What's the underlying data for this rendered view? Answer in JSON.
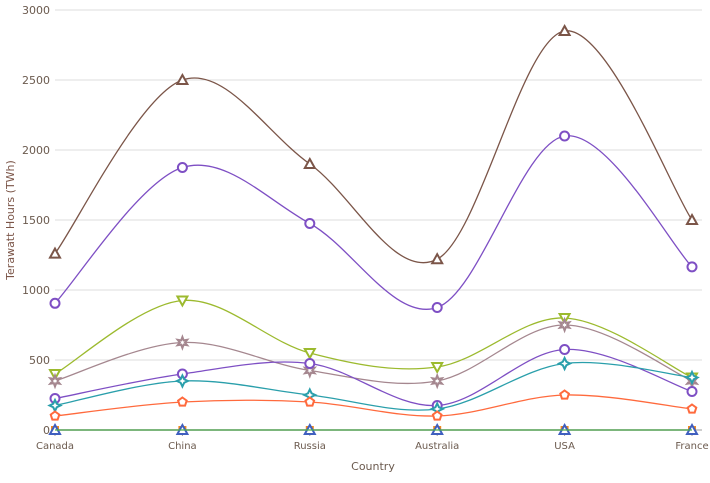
{
  "chart_data": {
    "type": "line",
    "xlabel": "Country",
    "ylabel": "Terawatt Hours (TWh)",
    "categories": [
      "Canada",
      "China",
      "Russia",
      "Australia",
      "USA",
      "France"
    ],
    "ylim": [
      0,
      3000
    ],
    "yticks": [
      0,
      500,
      1000,
      1500,
      2000,
      2500,
      3000
    ],
    "grid": true,
    "curve": "spline",
    "series": [
      {
        "color": "#7b5548",
        "marker": "triangle",
        "values": [
          1260,
          2500,
          1900,
          1220,
          2850,
          1500
        ]
      },
      {
        "color": "#7e4fc4",
        "marker": "circle",
        "values": [
          905,
          1875,
          1475,
          875,
          2100,
          1165
        ]
      },
      {
        "color": "#9cba2e",
        "marker": "triangle-down",
        "values": [
          400,
          925,
          550,
          450,
          800,
          375
        ]
      },
      {
        "color": "#a5878f",
        "marker": "star",
        "values": [
          350,
          625,
          425,
          350,
          750,
          350
        ]
      },
      {
        "color": "#7e4fc4",
        "marker": "circle",
        "values": [
          225,
          400,
          475,
          175,
          575,
          275
        ]
      },
      {
        "color": "#2a9fab",
        "marker": "diamond-star",
        "values": [
          175,
          350,
          250,
          150,
          475,
          375
        ]
      },
      {
        "color": "#ff6a3d",
        "marker": "pentagon",
        "values": [
          100,
          200,
          200,
          100,
          250,
          150
        ]
      },
      {
        "color": "#ef8a1e",
        "marker": "square",
        "values": [
          0,
          0,
          0,
          0,
          0,
          0
        ]
      },
      {
        "color": "#3f5fbf",
        "marker": "triangle",
        "values": [
          0,
          0,
          0,
          0,
          0,
          0
        ]
      },
      {
        "color": "#4caf50",
        "marker": "none",
        "values": [
          0,
          0,
          0,
          0,
          0,
          0
        ]
      }
    ]
  }
}
